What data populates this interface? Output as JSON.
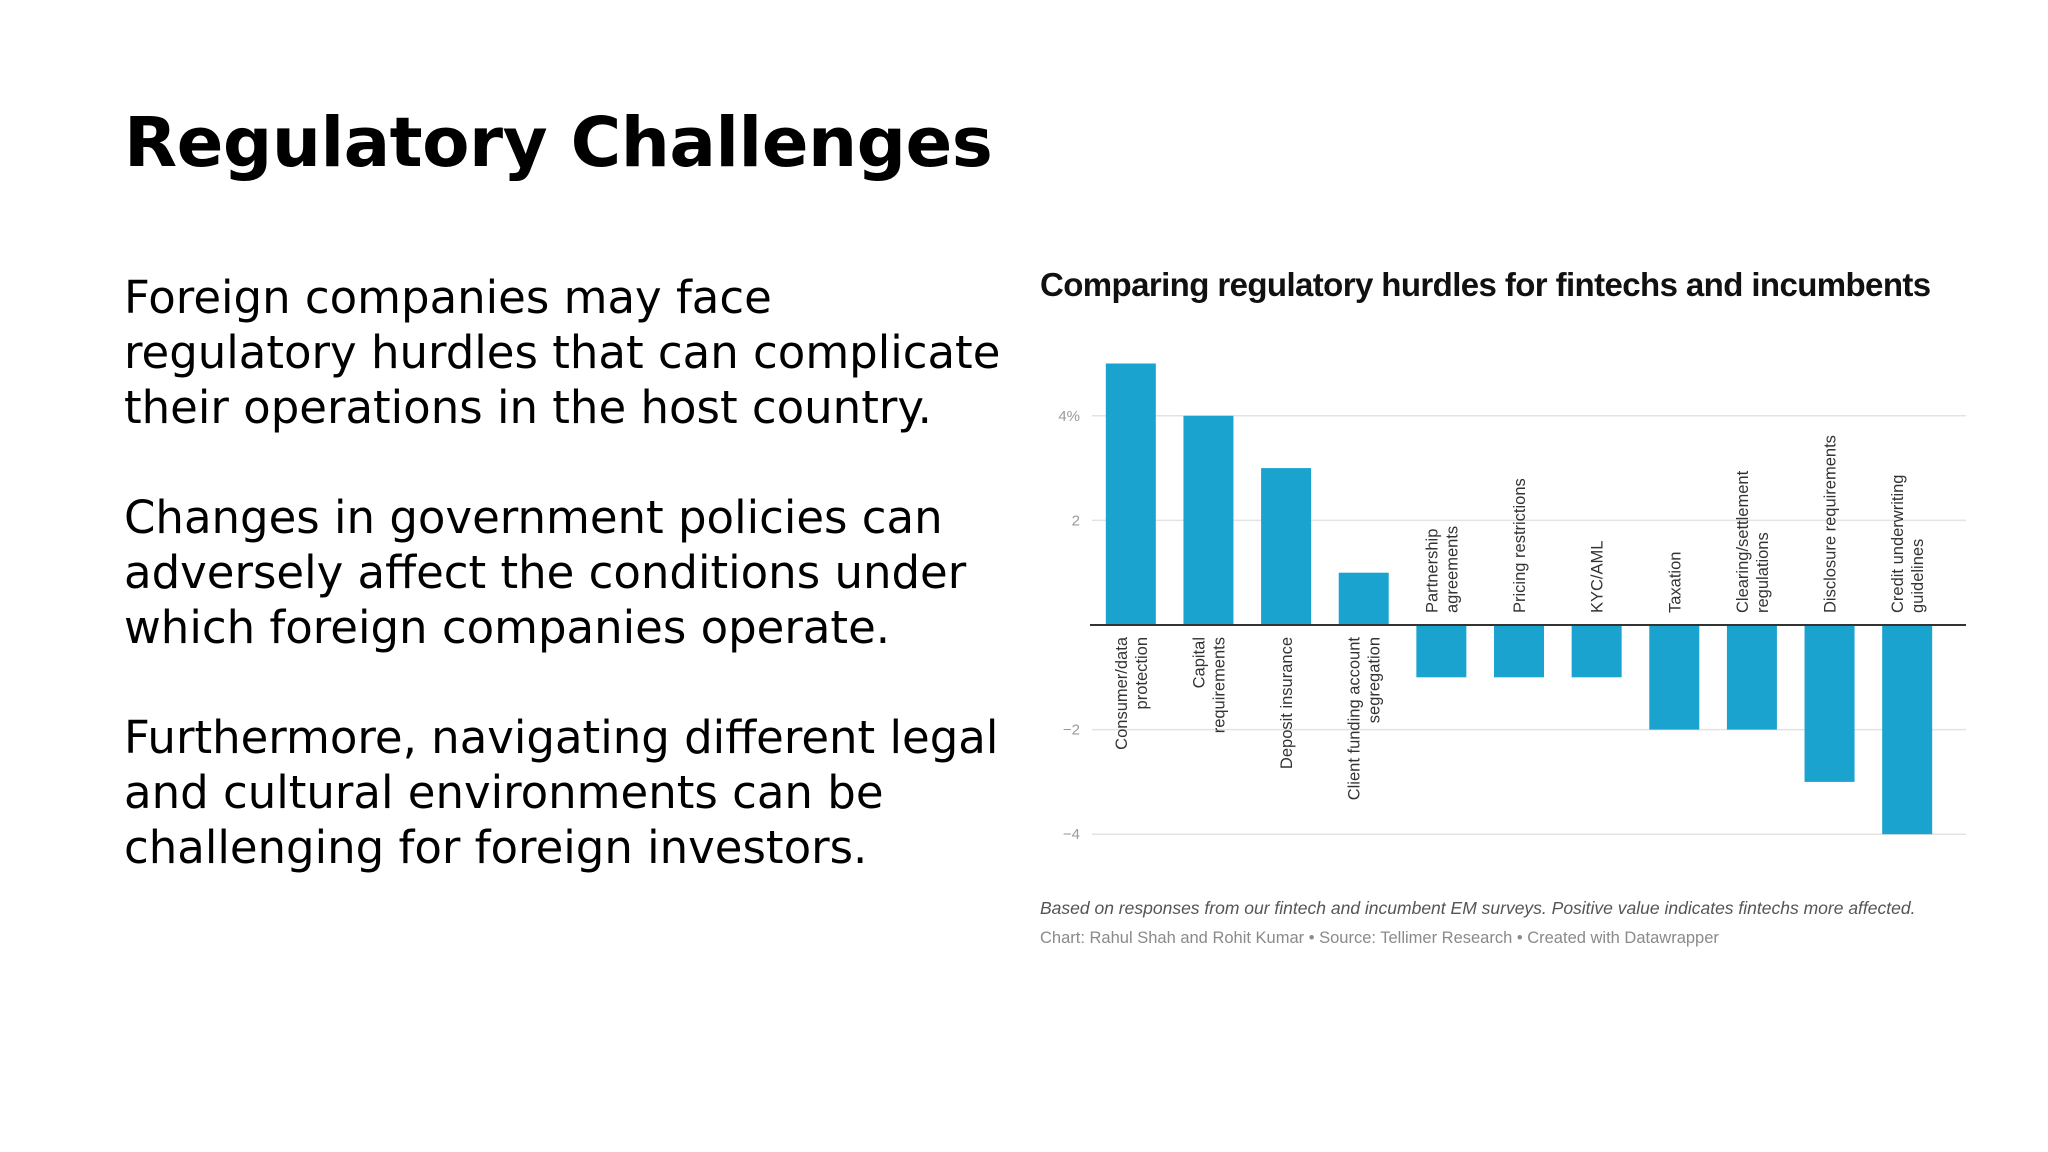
{
  "slide": {
    "title": "Regulatory Challenges",
    "paragraphs": [
      "Foreign companies may face regulatory hurdles that can complicate their operations in the host country.",
      "Changes in government policies can adversely affect the conditions under which foreign companies operate.",
      "Furthermore, navigating different legal and cultural environments can be challenging for foreign investors."
    ]
  },
  "chart_data": {
    "type": "bar",
    "title": "Comparing regulatory hurdles for fintechs and incumbents",
    "description": "Based on responses from our fintech and incumbent EM surveys. Positive value indicates fintechs more affected.",
    "source": "Chart: Rahul Shah and Rohit Kumar • Source: Tellimer Research • Created with Datawrapper",
    "categories": [
      [
        "Consumer/data",
        "protection"
      ],
      [
        "Capital",
        "requirements"
      ],
      [
        "Deposit insurance"
      ],
      [
        "Client funding account",
        "segregation"
      ],
      [
        "Partnership",
        "agreements"
      ],
      [
        "Pricing restrictions"
      ],
      [
        "KYC/AML"
      ],
      [
        "Taxation"
      ],
      [
        "Clearing/settlement",
        "regulations"
      ],
      [
        "Disclosure requirements"
      ],
      [
        "Credit underwriting",
        "guidelines"
      ]
    ],
    "values": [
      5,
      4,
      3,
      1,
      -1,
      -1,
      -1,
      -2,
      -2,
      -3,
      -4
    ],
    "yticks": [
      {
        "value": 4,
        "label": "4%"
      },
      {
        "value": 2,
        "label": "2"
      },
      {
        "value": -2,
        "label": "−2"
      },
      {
        "value": -4,
        "label": "−4"
      }
    ],
    "ylim": [
      -4,
      5
    ],
    "grid": true,
    "bar_color": "#1aa3cf",
    "grid_color": "#e3e3e3",
    "axis_color": "#333333",
    "tick_label_color": "#9a9a9a",
    "category_label_color": "#333333"
  }
}
